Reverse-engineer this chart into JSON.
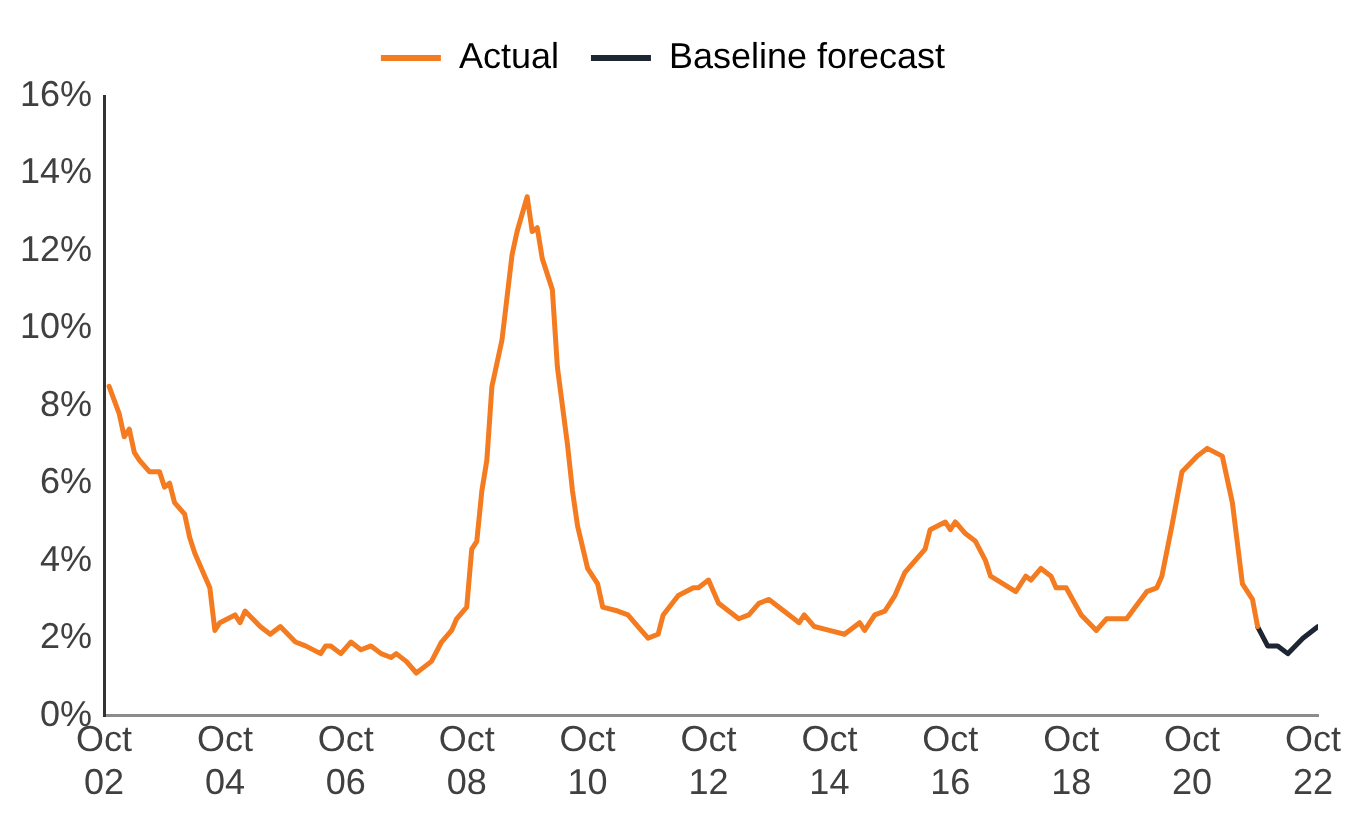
{
  "chart_data": {
    "type": "line",
    "legend": "top",
    "grid": false,
    "marker": "none",
    "line_style": "solid",
    "xlim": [
      "2002-10",
      "2022-11"
    ],
    "ylim": [
      0,
      16
    ],
    "xticks": [
      {
        "value": "2002-10",
        "label": "Oct 02"
      },
      {
        "value": "2004-10",
        "label": "Oct 04"
      },
      {
        "value": "2006-10",
        "label": "Oct 06"
      },
      {
        "value": "2008-10",
        "label": "Oct 08"
      },
      {
        "value": "2010-10",
        "label": "Oct 10"
      },
      {
        "value": "2012-10",
        "label": "Oct 12"
      },
      {
        "value": "2014-10",
        "label": "Oct 14"
      },
      {
        "value": "2016-10",
        "label": "Oct 16"
      },
      {
        "value": "2018-10",
        "label": "Oct 18"
      },
      {
        "value": "2020-10",
        "label": "Oct 20"
      },
      {
        "value": "2022-10",
        "label": "Oct 22"
      }
    ],
    "yticks": [
      {
        "value": 0,
        "label": "0%"
      },
      {
        "value": 2,
        "label": "2%"
      },
      {
        "value": 4,
        "label": "4%"
      },
      {
        "value": 6,
        "label": "6%"
      },
      {
        "value": 8,
        "label": "8%"
      },
      {
        "value": 10,
        "label": "10%"
      },
      {
        "value": 12,
        "label": "12%"
      },
      {
        "value": 14,
        "label": "14%"
      },
      {
        "value": 16,
        "label": "16%"
      }
    ],
    "series": [
      {
        "name": "Actual",
        "color": "#f47b20",
        "x": [
          "2002-11",
          "2003-01",
          "2003-02",
          "2003-03",
          "2003-04",
          "2003-05",
          "2003-07",
          "2003-09",
          "2003-10",
          "2003-11",
          "2003-12",
          "2004-02",
          "2004-03",
          "2004-04",
          "2004-06",
          "2004-07",
          "2004-08",
          "2004-09",
          "2004-12",
          "2005-01",
          "2005-02",
          "2005-05",
          "2005-07",
          "2005-09",
          "2005-12",
          "2006-02",
          "2006-05",
          "2006-06",
          "2006-07",
          "2006-09",
          "2006-11",
          "2007-01",
          "2007-03",
          "2007-05",
          "2007-07",
          "2007-08",
          "2007-10",
          "2007-12",
          "2008-01",
          "2008-03",
          "2008-05",
          "2008-07",
          "2008-08",
          "2008-10",
          "2008-11",
          "2008-12",
          "2009-01",
          "2009-02",
          "2009-03",
          "2009-05",
          "2009-07",
          "2009-08",
          "2009-10",
          "2009-11",
          "2009-12",
          "2010-01",
          "2010-03",
          "2010-04",
          "2010-06",
          "2010-07",
          "2010-08",
          "2010-10",
          "2010-12",
          "2011-01",
          "2011-04",
          "2011-06",
          "2011-08",
          "2011-10",
          "2011-12",
          "2012-01",
          "2012-04",
          "2012-07",
          "2012-08",
          "2012-10",
          "2012-12",
          "2013-02",
          "2013-04",
          "2013-06",
          "2013-08",
          "2013-10",
          "2013-12",
          "2014-02",
          "2014-04",
          "2014-05",
          "2014-07",
          "2014-10",
          "2015-01",
          "2015-04",
          "2015-05",
          "2015-07",
          "2015-09",
          "2015-11",
          "2016-01",
          "2016-05",
          "2016-06",
          "2016-09",
          "2016-10",
          "2016-11",
          "2017-01",
          "2017-03",
          "2017-05",
          "2017-06",
          "2017-11",
          "2018-01",
          "2018-02",
          "2018-04",
          "2018-06",
          "2018-07",
          "2018-09",
          "2018-12",
          "2019-03",
          "2019-05",
          "2019-09",
          "2020-01",
          "2020-03",
          "2020-04",
          "2020-06",
          "2020-08",
          "2020-11",
          "2021-01",
          "2021-04",
          "2021-06",
          "2021-08",
          "2021-10",
          "2021-11"
        ],
        "values": [
          8.5,
          7.8,
          7.2,
          7.4,
          6.8,
          6.6,
          6.3,
          6.3,
          5.9,
          6.0,
          5.5,
          5.2,
          4.6,
          4.2,
          3.6,
          3.3,
          2.2,
          2.4,
          2.6,
          2.4,
          2.7,
          2.3,
          2.1,
          2.3,
          1.9,
          1.8,
          1.6,
          1.8,
          1.8,
          1.6,
          1.9,
          1.7,
          1.8,
          1.6,
          1.5,
          1.6,
          1.4,
          1.1,
          1.2,
          1.4,
          1.9,
          2.2,
          2.5,
          2.8,
          4.3,
          4.5,
          5.8,
          6.6,
          8.5,
          9.7,
          11.9,
          12.5,
          13.4,
          12.5,
          12.6,
          11.8,
          11.0,
          9.0,
          7.0,
          5.8,
          4.9,
          3.8,
          3.4,
          2.8,
          2.7,
          2.6,
          2.3,
          2.0,
          2.1,
          2.6,
          3.1,
          3.3,
          3.3,
          3.5,
          2.9,
          2.7,
          2.5,
          2.6,
          2.9,
          3.0,
          2.8,
          2.6,
          2.4,
          2.6,
          2.3,
          2.2,
          2.1,
          2.4,
          2.2,
          2.6,
          2.7,
          3.1,
          3.7,
          4.3,
          4.8,
          5.0,
          4.8,
          5.0,
          4.7,
          4.5,
          4.0,
          3.6,
          3.2,
          3.6,
          3.5,
          3.8,
          3.6,
          3.3,
          3.3,
          2.6,
          2.2,
          2.5,
          2.5,
          3.2,
          3.3,
          3.6,
          4.9,
          6.3,
          6.7,
          6.9,
          6.7,
          5.5,
          3.4,
          3.0,
          2.3
        ]
      },
      {
        "name": "Baseline forecast",
        "color": "#1f2633",
        "x": [
          "2021-11",
          "2022-01",
          "2022-03",
          "2022-05",
          "2022-08",
          "2022-11"
        ],
        "values": [
          2.3,
          1.8,
          1.8,
          1.6,
          2.0,
          2.3
        ]
      }
    ]
  }
}
